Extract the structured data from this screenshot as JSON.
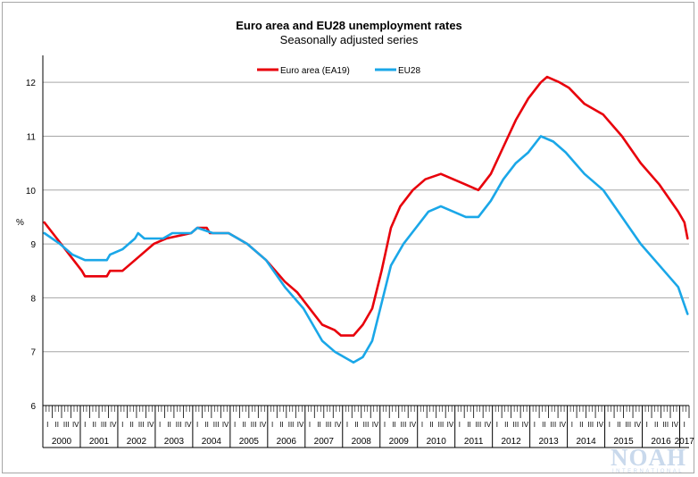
{
  "chart_data": {
    "type": "line",
    "title": "Euro area and EU28 unemployment rates",
    "subtitle": "Seasonally adjusted series",
    "ylabel": "%",
    "ylim": [
      6,
      12.5
    ],
    "yticks": [
      "6",
      "7",
      "8",
      "9",
      "10",
      "11",
      "12"
    ],
    "grid": "horizontal",
    "legend_position": "top-center",
    "x_start": "2000-01",
    "x_end": "2017-03",
    "years": [
      "2000",
      "2001",
      "2002",
      "2003",
      "2004",
      "2005",
      "2006",
      "2007",
      "2008",
      "2009",
      "2010",
      "2011",
      "2012",
      "2013",
      "2014",
      "2015",
      "2016",
      "2017"
    ],
    "quarter_labels": [
      "I",
      "II",
      "III",
      "IV"
    ],
    "series": [
      {
        "name": "Euro area (EA19)",
        "color": "#e8000b",
        "points": [
          [
            "2000-01",
            9.4
          ],
          [
            "2000-05",
            9.1
          ],
          [
            "2000-09",
            8.8
          ],
          [
            "2001-01",
            8.5
          ],
          [
            "2001-02",
            8.4
          ],
          [
            "2001-09",
            8.4
          ],
          [
            "2001-10",
            8.5
          ],
          [
            "2002-02",
            8.5
          ],
          [
            "2002-06",
            8.7
          ],
          [
            "2002-12",
            9.0
          ],
          [
            "2003-04",
            9.1
          ],
          [
            "2003-12",
            9.2
          ],
          [
            "2004-02",
            9.3
          ],
          [
            "2004-05",
            9.3
          ],
          [
            "2004-06",
            9.2
          ],
          [
            "2004-12",
            9.2
          ],
          [
            "2005-03",
            9.1
          ],
          [
            "2005-06",
            9.0
          ],
          [
            "2005-12",
            8.7
          ],
          [
            "2006-03",
            8.5
          ],
          [
            "2006-06",
            8.3
          ],
          [
            "2006-10",
            8.1
          ],
          [
            "2007-02",
            7.8
          ],
          [
            "2007-06",
            7.5
          ],
          [
            "2007-10",
            7.4
          ],
          [
            "2007-12",
            7.3
          ],
          [
            "2008-04",
            7.3
          ],
          [
            "2008-07",
            7.5
          ],
          [
            "2008-10",
            7.8
          ],
          [
            "2009-01",
            8.5
          ],
          [
            "2009-04",
            9.3
          ],
          [
            "2009-07",
            9.7
          ],
          [
            "2009-11",
            10.0
          ],
          [
            "2010-03",
            10.2
          ],
          [
            "2010-08",
            10.3
          ],
          [
            "2010-12",
            10.2
          ],
          [
            "2011-04",
            10.1
          ],
          [
            "2011-08",
            10.0
          ],
          [
            "2011-12",
            10.3
          ],
          [
            "2012-04",
            10.8
          ],
          [
            "2012-08",
            11.3
          ],
          [
            "2012-12",
            11.7
          ],
          [
            "2013-04",
            12.0
          ],
          [
            "2013-06",
            12.1
          ],
          [
            "2013-10",
            12.0
          ],
          [
            "2014-01",
            11.9
          ],
          [
            "2014-06",
            11.6
          ],
          [
            "2014-09",
            11.5
          ],
          [
            "2014-12",
            11.4
          ],
          [
            "2015-06",
            11.0
          ],
          [
            "2015-12",
            10.5
          ],
          [
            "2016-06",
            10.1
          ],
          [
            "2016-12",
            9.6
          ],
          [
            "2017-02",
            9.4
          ],
          [
            "2017-03",
            9.1
          ]
        ]
      },
      {
        "name": "EU28",
        "color": "#1aa7e8",
        "points": [
          [
            "2000-01",
            9.2
          ],
          [
            "2000-06",
            9.0
          ],
          [
            "2000-10",
            8.8
          ],
          [
            "2001-02",
            8.7
          ],
          [
            "2001-09",
            8.7
          ],
          [
            "2001-10",
            8.8
          ],
          [
            "2002-02",
            8.9
          ],
          [
            "2002-06",
            9.1
          ],
          [
            "2002-07",
            9.2
          ],
          [
            "2002-09",
            9.1
          ],
          [
            "2003-03",
            9.1
          ],
          [
            "2003-06",
            9.2
          ],
          [
            "2003-12",
            9.2
          ],
          [
            "2004-02",
            9.3
          ],
          [
            "2004-07",
            9.2
          ],
          [
            "2004-12",
            9.2
          ],
          [
            "2005-06",
            9.0
          ],
          [
            "2005-12",
            8.7
          ],
          [
            "2006-06",
            8.2
          ],
          [
            "2006-12",
            7.8
          ],
          [
            "2007-06",
            7.2
          ],
          [
            "2007-10",
            7.0
          ],
          [
            "2008-01",
            6.9
          ],
          [
            "2008-04",
            6.8
          ],
          [
            "2008-07",
            6.9
          ],
          [
            "2008-10",
            7.2
          ],
          [
            "2009-01",
            7.9
          ],
          [
            "2009-04",
            8.6
          ],
          [
            "2009-08",
            9.0
          ],
          [
            "2009-12",
            9.3
          ],
          [
            "2010-04",
            9.6
          ],
          [
            "2010-08",
            9.7
          ],
          [
            "2010-12",
            9.6
          ],
          [
            "2011-04",
            9.5
          ],
          [
            "2011-08",
            9.5
          ],
          [
            "2011-12",
            9.8
          ],
          [
            "2012-04",
            10.2
          ],
          [
            "2012-08",
            10.5
          ],
          [
            "2012-12",
            10.7
          ],
          [
            "2013-04",
            11.0
          ],
          [
            "2013-08",
            10.9
          ],
          [
            "2013-12",
            10.7
          ],
          [
            "2014-06",
            10.3
          ],
          [
            "2014-12",
            10.0
          ],
          [
            "2015-06",
            9.5
          ],
          [
            "2015-12",
            9.0
          ],
          [
            "2016-06",
            8.6
          ],
          [
            "2016-12",
            8.2
          ],
          [
            "2017-03",
            7.7
          ]
        ]
      }
    ]
  },
  "brand": {
    "logo_text": "NOAH",
    "logo_subtext": "INTERNATIONAL",
    "logo_color": "#c9d9ec"
  }
}
